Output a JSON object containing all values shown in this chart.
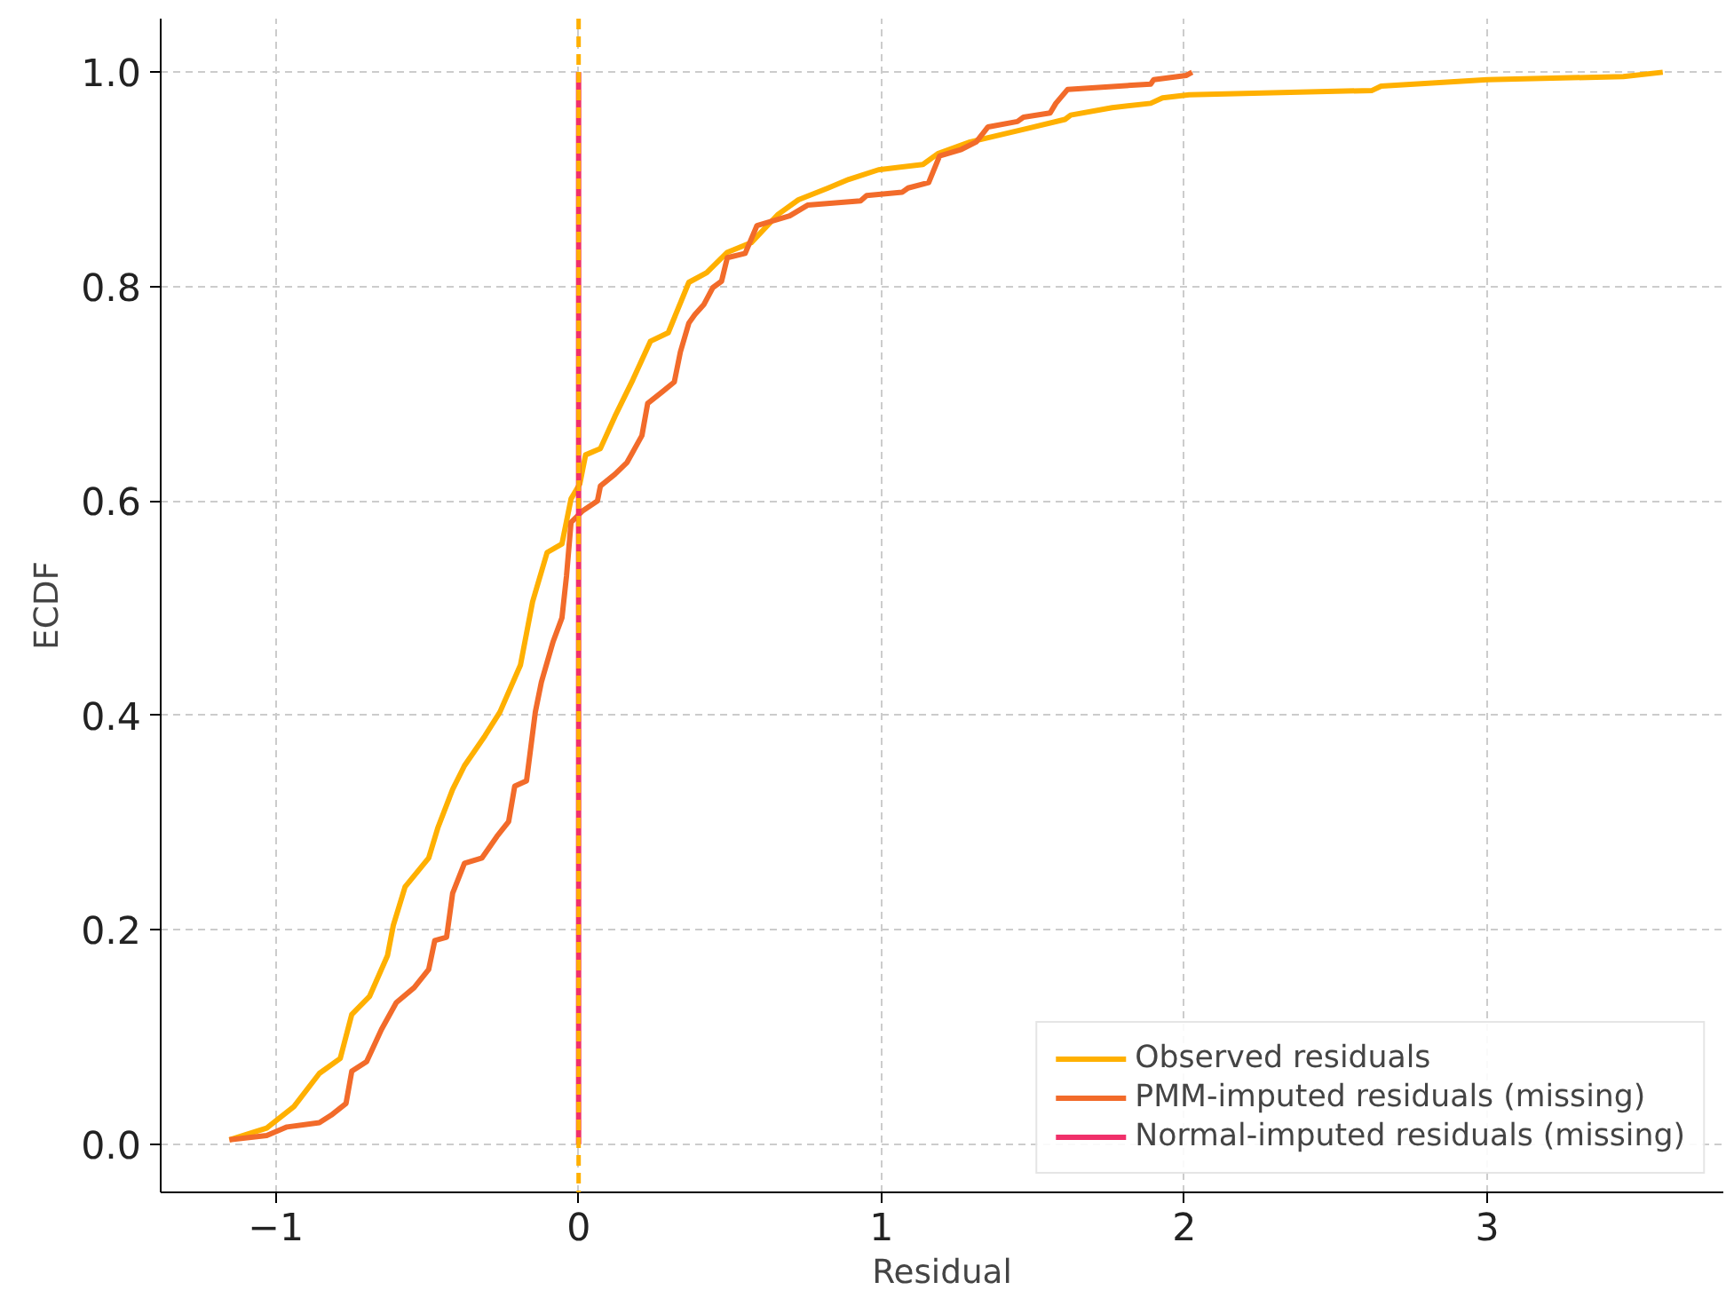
{
  "chart_data": {
    "type": "line",
    "xlabel": "Residual",
    "ylabel": "ECDF",
    "xlim": [
      -1.38,
      3.78
    ],
    "ylim": [
      -0.045,
      1.05
    ],
    "xticks": [
      {
        "value": -1,
        "label": "−1"
      },
      0,
      1,
      2,
      3
    ],
    "yticks": [
      {
        "value": 0,
        "label": "0.0"
      },
      0.2,
      0.4,
      0.6,
      0.8,
      {
        "value": 1,
        "label": "1.0"
      }
    ],
    "grid": true,
    "legend": "bottom right",
    "line_style": "solid",
    "marker": "none",
    "series": [
      {
        "name": "Observed residuals",
        "color": "#ffb000",
        "x": [
          -1.153,
          -1.03,
          -0.94,
          -0.856,
          -0.787,
          -0.749,
          -0.69,
          -0.631,
          -0.612,
          -0.573,
          -0.495,
          -0.465,
          -0.416,
          -0.377,
          -0.309,
          -0.26,
          -0.192,
          -0.152,
          -0.104,
          -0.055,
          -0.025,
          0.004,
          0.023,
          0.072,
          0.12,
          0.179,
          0.237,
          0.296,
          0.364,
          0.423,
          0.491,
          0.57,
          0.657,
          0.726,
          0.824,
          0.892,
          0.99,
          1.137,
          1.186,
          1.293,
          1.489,
          1.606,
          1.625,
          1.762,
          1.889,
          1.928,
          2.016,
          2.62,
          2.65,
          3.0,
          3.45,
          3.58
        ],
        "values": [
          0.004,
          0.015,
          0.035,
          0.066,
          0.08,
          0.121,
          0.138,
          0.176,
          0.204,
          0.24,
          0.267,
          0.295,
          0.331,
          0.353,
          0.381,
          0.403,
          0.447,
          0.506,
          0.552,
          0.56,
          0.602,
          0.616,
          0.643,
          0.649,
          0.679,
          0.713,
          0.749,
          0.757,
          0.804,
          0.813,
          0.832,
          0.841,
          0.867,
          0.881,
          0.892,
          0.9,
          0.909,
          0.914,
          0.924,
          0.935,
          0.948,
          0.956,
          0.96,
          0.967,
          0.971,
          0.976,
          0.979,
          0.983,
          0.987,
          0.993,
          0.996,
          1.0
        ]
      },
      {
        "name": "PMM-imputed residuals (missing)",
        "color": "#f26b2a",
        "x": [
          -1.153,
          -1.03,
          -0.963,
          -0.856,
          -0.817,
          -0.768,
          -0.749,
          -0.7,
          -0.651,
          -0.602,
          -0.543,
          -0.495,
          -0.475,
          -0.436,
          -0.416,
          -0.377,
          -0.319,
          -0.27,
          -0.231,
          -0.211,
          -0.172,
          -0.143,
          -0.123,
          -0.084,
          -0.055,
          -0.04,
          -0.025,
          0.014,
          0.062,
          0.072,
          0.12,
          0.16,
          0.209,
          0.228,
          0.277,
          0.316,
          0.336,
          0.364,
          0.384,
          0.413,
          0.443,
          0.472,
          0.491,
          0.55,
          0.589,
          0.697,
          0.756,
          0.931,
          0.951,
          1.068,
          1.088,
          1.156,
          1.192,
          1.264,
          1.313,
          1.352,
          1.449,
          1.469,
          1.557,
          1.576,
          1.615,
          1.889,
          1.899,
          2.006,
          2.026
        ],
        "values": [
          0.004,
          0.008,
          0.016,
          0.02,
          0.027,
          0.038,
          0.068,
          0.077,
          0.107,
          0.132,
          0.146,
          0.163,
          0.19,
          0.193,
          0.234,
          0.262,
          0.267,
          0.287,
          0.301,
          0.334,
          0.339,
          0.403,
          0.431,
          0.469,
          0.491,
          0.53,
          0.58,
          0.591,
          0.6,
          0.614,
          0.625,
          0.636,
          0.661,
          0.691,
          0.702,
          0.711,
          0.739,
          0.766,
          0.774,
          0.783,
          0.799,
          0.805,
          0.827,
          0.831,
          0.857,
          0.866,
          0.876,
          0.88,
          0.885,
          0.888,
          0.892,
          0.897,
          0.922,
          0.928,
          0.935,
          0.949,
          0.954,
          0.958,
          0.962,
          0.971,
          0.984,
          0.989,
          0.993,
          0.997,
          1.0
        ]
      },
      {
        "name": "Normal-imputed residuals (missing)",
        "color": "#f0306a",
        "x": [
          0,
          0
        ],
        "values": [
          0.0,
          1.0
        ]
      }
    ],
    "ref_lines": [
      {
        "axis": "x",
        "value": 0,
        "color": "#ffb000",
        "line_style": "dashed"
      }
    ]
  }
}
